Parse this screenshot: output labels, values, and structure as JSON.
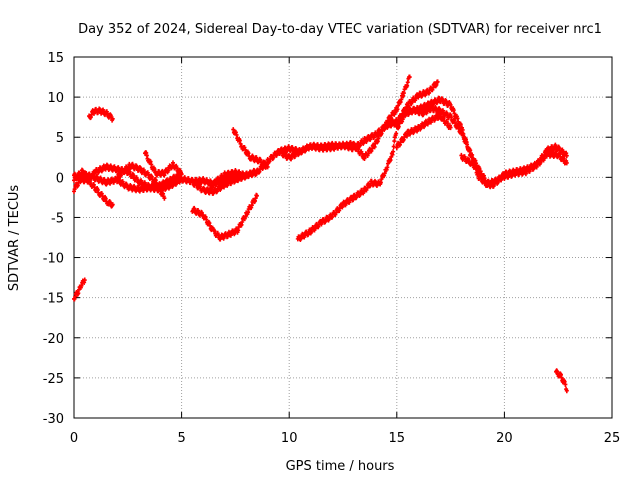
{
  "chart_data": {
    "type": "scatter",
    "title": "Day 352 of 2024, Sidereal Day-to-day VTEC variation (SDTVAR) for receiver nrc1",
    "xlabel": "GPS time / hours",
    "ylabel": "SDTVAR / TECUs",
    "xlim": [
      0,
      25
    ],
    "ylim": [
      -30,
      15
    ],
    "xticks": [
      0,
      5,
      10,
      15,
      20,
      25
    ],
    "yticks": [
      -30,
      -25,
      -20,
      -15,
      -10,
      -5,
      0,
      5,
      10,
      15
    ],
    "grid": true,
    "marker_color": "#ff0000",
    "series": [
      {
        "name": "s1",
        "points": [
          [
            0.0,
            -15.0
          ],
          [
            0.2,
            -14.3
          ],
          [
            0.35,
            -13.4
          ],
          [
            0.5,
            -12.8
          ]
        ]
      },
      {
        "name": "s2",
        "points": [
          [
            0.7,
            7.4
          ],
          [
            0.9,
            8.2
          ],
          [
            1.2,
            8.3
          ],
          [
            1.5,
            8.0
          ],
          [
            1.8,
            7.3
          ]
        ]
      },
      {
        "name": "s3",
        "points": [
          [
            0.0,
            -1.5
          ],
          [
            0.3,
            -0.3
          ],
          [
            0.6,
            0.3
          ],
          [
            1.0,
            -0.1
          ],
          [
            1.5,
            -0.6
          ],
          [
            2.0,
            -0.3
          ],
          [
            2.5,
            -1.2
          ],
          [
            3.0,
            -1.5
          ],
          [
            3.5,
            -1.3
          ],
          [
            4.0,
            -1.5
          ],
          [
            4.5,
            -1.0
          ],
          [
            5.0,
            -0.2
          ],
          [
            5.5,
            -0.5
          ],
          [
            6.0,
            -0.4
          ],
          [
            6.5,
            -0.8
          ],
          [
            7.0,
            -0.3
          ],
          [
            7.5,
            -0.2
          ],
          [
            8.0,
            0.3
          ],
          [
            8.5,
            0.6
          ],
          [
            9.0,
            2.0
          ],
          [
            9.5,
            3.2
          ],
          [
            10.0,
            3.6
          ],
          [
            10.5,
            3.2
          ],
          [
            11.0,
            3.9
          ],
          [
            11.5,
            3.6
          ],
          [
            12.0,
            3.7
          ],
          [
            12.5,
            4.0
          ],
          [
            13.0,
            3.6
          ],
          [
            13.5,
            4.6
          ],
          [
            14.0,
            5.3
          ],
          [
            14.5,
            6.4
          ],
          [
            15.0,
            7.0
          ],
          [
            15.5,
            8.2
          ],
          [
            16.0,
            8.5
          ],
          [
            16.5,
            9.1
          ],
          [
            17.0,
            9.7
          ],
          [
            17.5,
            9.0
          ],
          [
            18.0,
            6.2
          ],
          [
            18.4,
            3.0
          ],
          [
            18.8,
            0.1
          ],
          [
            19.2,
            -0.9
          ],
          [
            19.6,
            -0.4
          ],
          [
            20.0,
            0.1
          ],
          [
            20.5,
            0.5
          ],
          [
            21.0,
            0.7
          ],
          [
            21.5,
            1.5
          ],
          [
            22.0,
            2.9
          ],
          [
            22.5,
            2.8
          ],
          [
            22.9,
            1.8
          ]
        ]
      },
      {
        "name": "s4",
        "points": [
          [
            0.0,
            -0.3
          ],
          [
            0.4,
            0.8
          ],
          [
            0.8,
            -0.8
          ],
          [
            1.2,
            -2.0
          ],
          [
            1.6,
            -3.2
          ],
          [
            1.8,
            -3.4
          ]
        ]
      },
      {
        "name": "s5",
        "points": [
          [
            0.0,
            0.2
          ],
          [
            0.6,
            -0.5
          ],
          [
            1.0,
            0.7
          ],
          [
            1.5,
            1.3
          ],
          [
            2.0,
            1.0
          ],
          [
            2.5,
            0.7
          ],
          [
            3.0,
            -0.5
          ],
          [
            3.5,
            -1.2
          ],
          [
            4.0,
            -1.0
          ],
          [
            4.5,
            -0.3
          ],
          [
            5.0,
            0.4
          ]
        ]
      },
      {
        "name": "s6",
        "points": [
          [
            2.0,
            0.0
          ],
          [
            2.6,
            1.5
          ],
          [
            3.0,
            1.1
          ],
          [
            3.4,
            0.4
          ],
          [
            3.8,
            -0.6
          ],
          [
            4.2,
            -2.6
          ]
        ]
      },
      {
        "name": "s7",
        "points": [
          [
            3.3,
            3.1
          ],
          [
            3.5,
            2.0
          ],
          [
            3.8,
            0.5
          ],
          [
            4.2,
            0.5
          ],
          [
            4.6,
            1.6
          ],
          [
            5.0,
            0.4
          ]
        ]
      },
      {
        "name": "s8",
        "points": [
          [
            5.5,
            -4.0
          ],
          [
            6.0,
            -4.7
          ],
          [
            6.5,
            -6.8
          ],
          [
            6.8,
            -7.5
          ],
          [
            7.2,
            -7.1
          ],
          [
            7.6,
            -6.6
          ],
          [
            8.0,
            -4.6
          ],
          [
            8.5,
            -2.3
          ]
        ]
      },
      {
        "name": "s9",
        "points": [
          [
            5.5,
            -0.6
          ],
          [
            6.0,
            -1.6
          ],
          [
            6.5,
            -1.8
          ],
          [
            7.0,
            -0.9
          ],
          [
            7.5,
            -0.3
          ],
          [
            8.0,
            0.2
          ]
        ]
      },
      {
        "name": "s10",
        "points": [
          [
            6.3,
            -1.5
          ],
          [
            6.6,
            -0.5
          ],
          [
            7.0,
            0.3
          ],
          [
            7.5,
            0.6
          ],
          [
            8.0,
            0.2
          ],
          [
            8.5,
            0.8
          ]
        ]
      },
      {
        "name": "s11",
        "points": [
          [
            7.4,
            6.0
          ],
          [
            7.8,
            3.9
          ],
          [
            8.2,
            2.5
          ],
          [
            8.6,
            2.1
          ],
          [
            9.0,
            1.3
          ]
        ]
      },
      {
        "name": "s12",
        "points": [
          [
            9.5,
            3.3
          ],
          [
            10.0,
            2.4
          ],
          [
            10.5,
            3.2
          ],
          [
            11.0,
            3.9
          ],
          [
            11.5,
            3.8
          ],
          [
            12.0,
            4.0
          ],
          [
            12.5,
            3.9
          ],
          [
            13.0,
            4.2
          ]
        ]
      },
      {
        "name": "s13",
        "points": [
          [
            10.4,
            -7.7
          ],
          [
            11.0,
            -6.7
          ],
          [
            11.5,
            -5.6
          ],
          [
            12.0,
            -4.8
          ],
          [
            12.5,
            -3.4
          ],
          [
            13.0,
            -2.5
          ],
          [
            13.5,
            -1.6
          ],
          [
            13.8,
            -0.7
          ],
          [
            14.2,
            -0.8
          ],
          [
            14.5,
            1.0
          ],
          [
            14.8,
            3.0
          ],
          [
            15.0,
            6.1
          ],
          [
            15.4,
            7.9
          ],
          [
            15.8,
            8.4
          ],
          [
            16.2,
            8.0
          ],
          [
            16.6,
            8.6
          ],
          [
            17.0,
            8.3
          ],
          [
            17.5,
            7.5
          ],
          [
            18.0,
            5.6
          ],
          [
            18.5,
            2.6
          ],
          [
            18.9,
            0.6
          ],
          [
            19.2,
            -0.7
          ],
          [
            19.6,
            -0.7
          ],
          [
            20.0,
            0.4
          ],
          [
            20.5,
            0.7
          ],
          [
            21.0,
            1.0
          ],
          [
            21.5,
            1.6
          ],
          [
            22.0,
            3.4
          ],
          [
            22.4,
            3.8
          ],
          [
            22.9,
            2.7
          ]
        ]
      },
      {
        "name": "s14",
        "points": [
          [
            13.0,
            4.0
          ],
          [
            13.5,
            2.5
          ],
          [
            14.0,
            4.1
          ],
          [
            14.5,
            6.8
          ],
          [
            15.0,
            8.5
          ],
          [
            15.3,
            10.4
          ],
          [
            15.6,
            12.5
          ]
        ]
      },
      {
        "name": "s15",
        "points": [
          [
            14.5,
            6.5
          ],
          [
            15.0,
            6.8
          ],
          [
            15.5,
            9.0
          ],
          [
            16.0,
            10.2
          ],
          [
            16.5,
            10.7
          ],
          [
            16.9,
            11.9
          ]
        ]
      },
      {
        "name": "s16",
        "points": [
          [
            15.0,
            3.8
          ],
          [
            15.5,
            5.5
          ],
          [
            16.0,
            6.1
          ],
          [
            16.5,
            7.0
          ],
          [
            17.0,
            7.7
          ],
          [
            17.5,
            6.2
          ]
        ]
      },
      {
        "name": "s17",
        "points": [
          [
            18.0,
            2.6
          ],
          [
            18.4,
            1.9
          ],
          [
            18.7,
            1.2
          ],
          [
            19.1,
            -0.7
          ],
          [
            19.5,
            -1.1
          ]
        ]
      },
      {
        "name": "s18",
        "points": [
          [
            22.4,
            -24.3
          ],
          [
            22.6,
            -24.7
          ],
          [
            22.8,
            -25.7
          ],
          [
            22.9,
            -26.6
          ]
        ]
      }
    ]
  }
}
